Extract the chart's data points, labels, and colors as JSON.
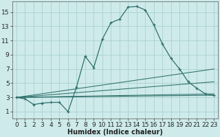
{
  "xlabel": "Humidex (Indice chaleur)",
  "bg_color": "#ceeaea",
  "grid_color": "#a8d0d0",
  "line_color": "#2d6e68",
  "xlim": [
    -0.5,
    23.5
  ],
  "ylim": [
    0,
    16.5
  ],
  "xticks": [
    0,
    1,
    2,
    3,
    4,
    5,
    6,
    7,
    8,
    9,
    10,
    11,
    12,
    13,
    14,
    15,
    16,
    17,
    18,
    19,
    20,
    21,
    22,
    23
  ],
  "yticks": [
    1,
    3,
    5,
    7,
    9,
    11,
    13,
    15
  ],
  "main_x": [
    0,
    1,
    2,
    3,
    4,
    5,
    6,
    7,
    8,
    9,
    10,
    11,
    12,
    13,
    14,
    15,
    16,
    17,
    18,
    19,
    20,
    21,
    22,
    23
  ],
  "main_y": [
    3.0,
    2.8,
    2.0,
    2.2,
    2.3,
    2.3,
    1.0,
    4.5,
    8.8,
    7.2,
    11.2,
    13.5,
    14.0,
    15.7,
    15.8,
    15.3,
    13.2,
    10.5,
    8.5,
    7.0,
    5.2,
    4.3,
    3.5,
    3.3
  ],
  "straight_lines": [
    {
      "x": [
        0,
        23
      ],
      "y": [
        3.0,
        3.3
      ]
    },
    {
      "x": [
        0,
        23
      ],
      "y": [
        3.0,
        3.5
      ]
    },
    {
      "x": [
        0,
        23
      ],
      "y": [
        3.0,
        5.2
      ]
    },
    {
      "x": [
        0,
        23
      ],
      "y": [
        3.0,
        7.0
      ]
    }
  ],
  "xlabel_fontsize": 7,
  "tick_fontsize": 6.5
}
